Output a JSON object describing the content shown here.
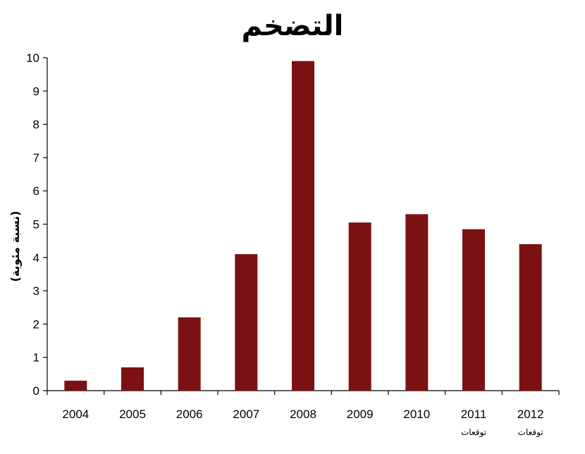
{
  "chart_data": {
    "type": "bar",
    "title": "التضخم",
    "ylabel": "(نسبة مئوية)",
    "xlabel": "",
    "categories": [
      "2004",
      "2005",
      "2006",
      "2007",
      "2008",
      "2009",
      "2010",
      "2011",
      "2012"
    ],
    "category_sublabels": [
      "",
      "",
      "",
      "",
      "",
      "",
      "",
      "توقعات",
      "توقعات"
    ],
    "values": [
      0.3,
      0.7,
      2.2,
      4.1,
      9.9,
      5.05,
      5.3,
      4.85,
      4.4
    ],
    "ylim": [
      0,
      10
    ],
    "yticks": [
      "0",
      "1",
      "2",
      "3",
      "4",
      "5",
      "6",
      "7",
      "8",
      "9",
      "10"
    ],
    "grid": false,
    "bar_color": "#7b1113"
  }
}
